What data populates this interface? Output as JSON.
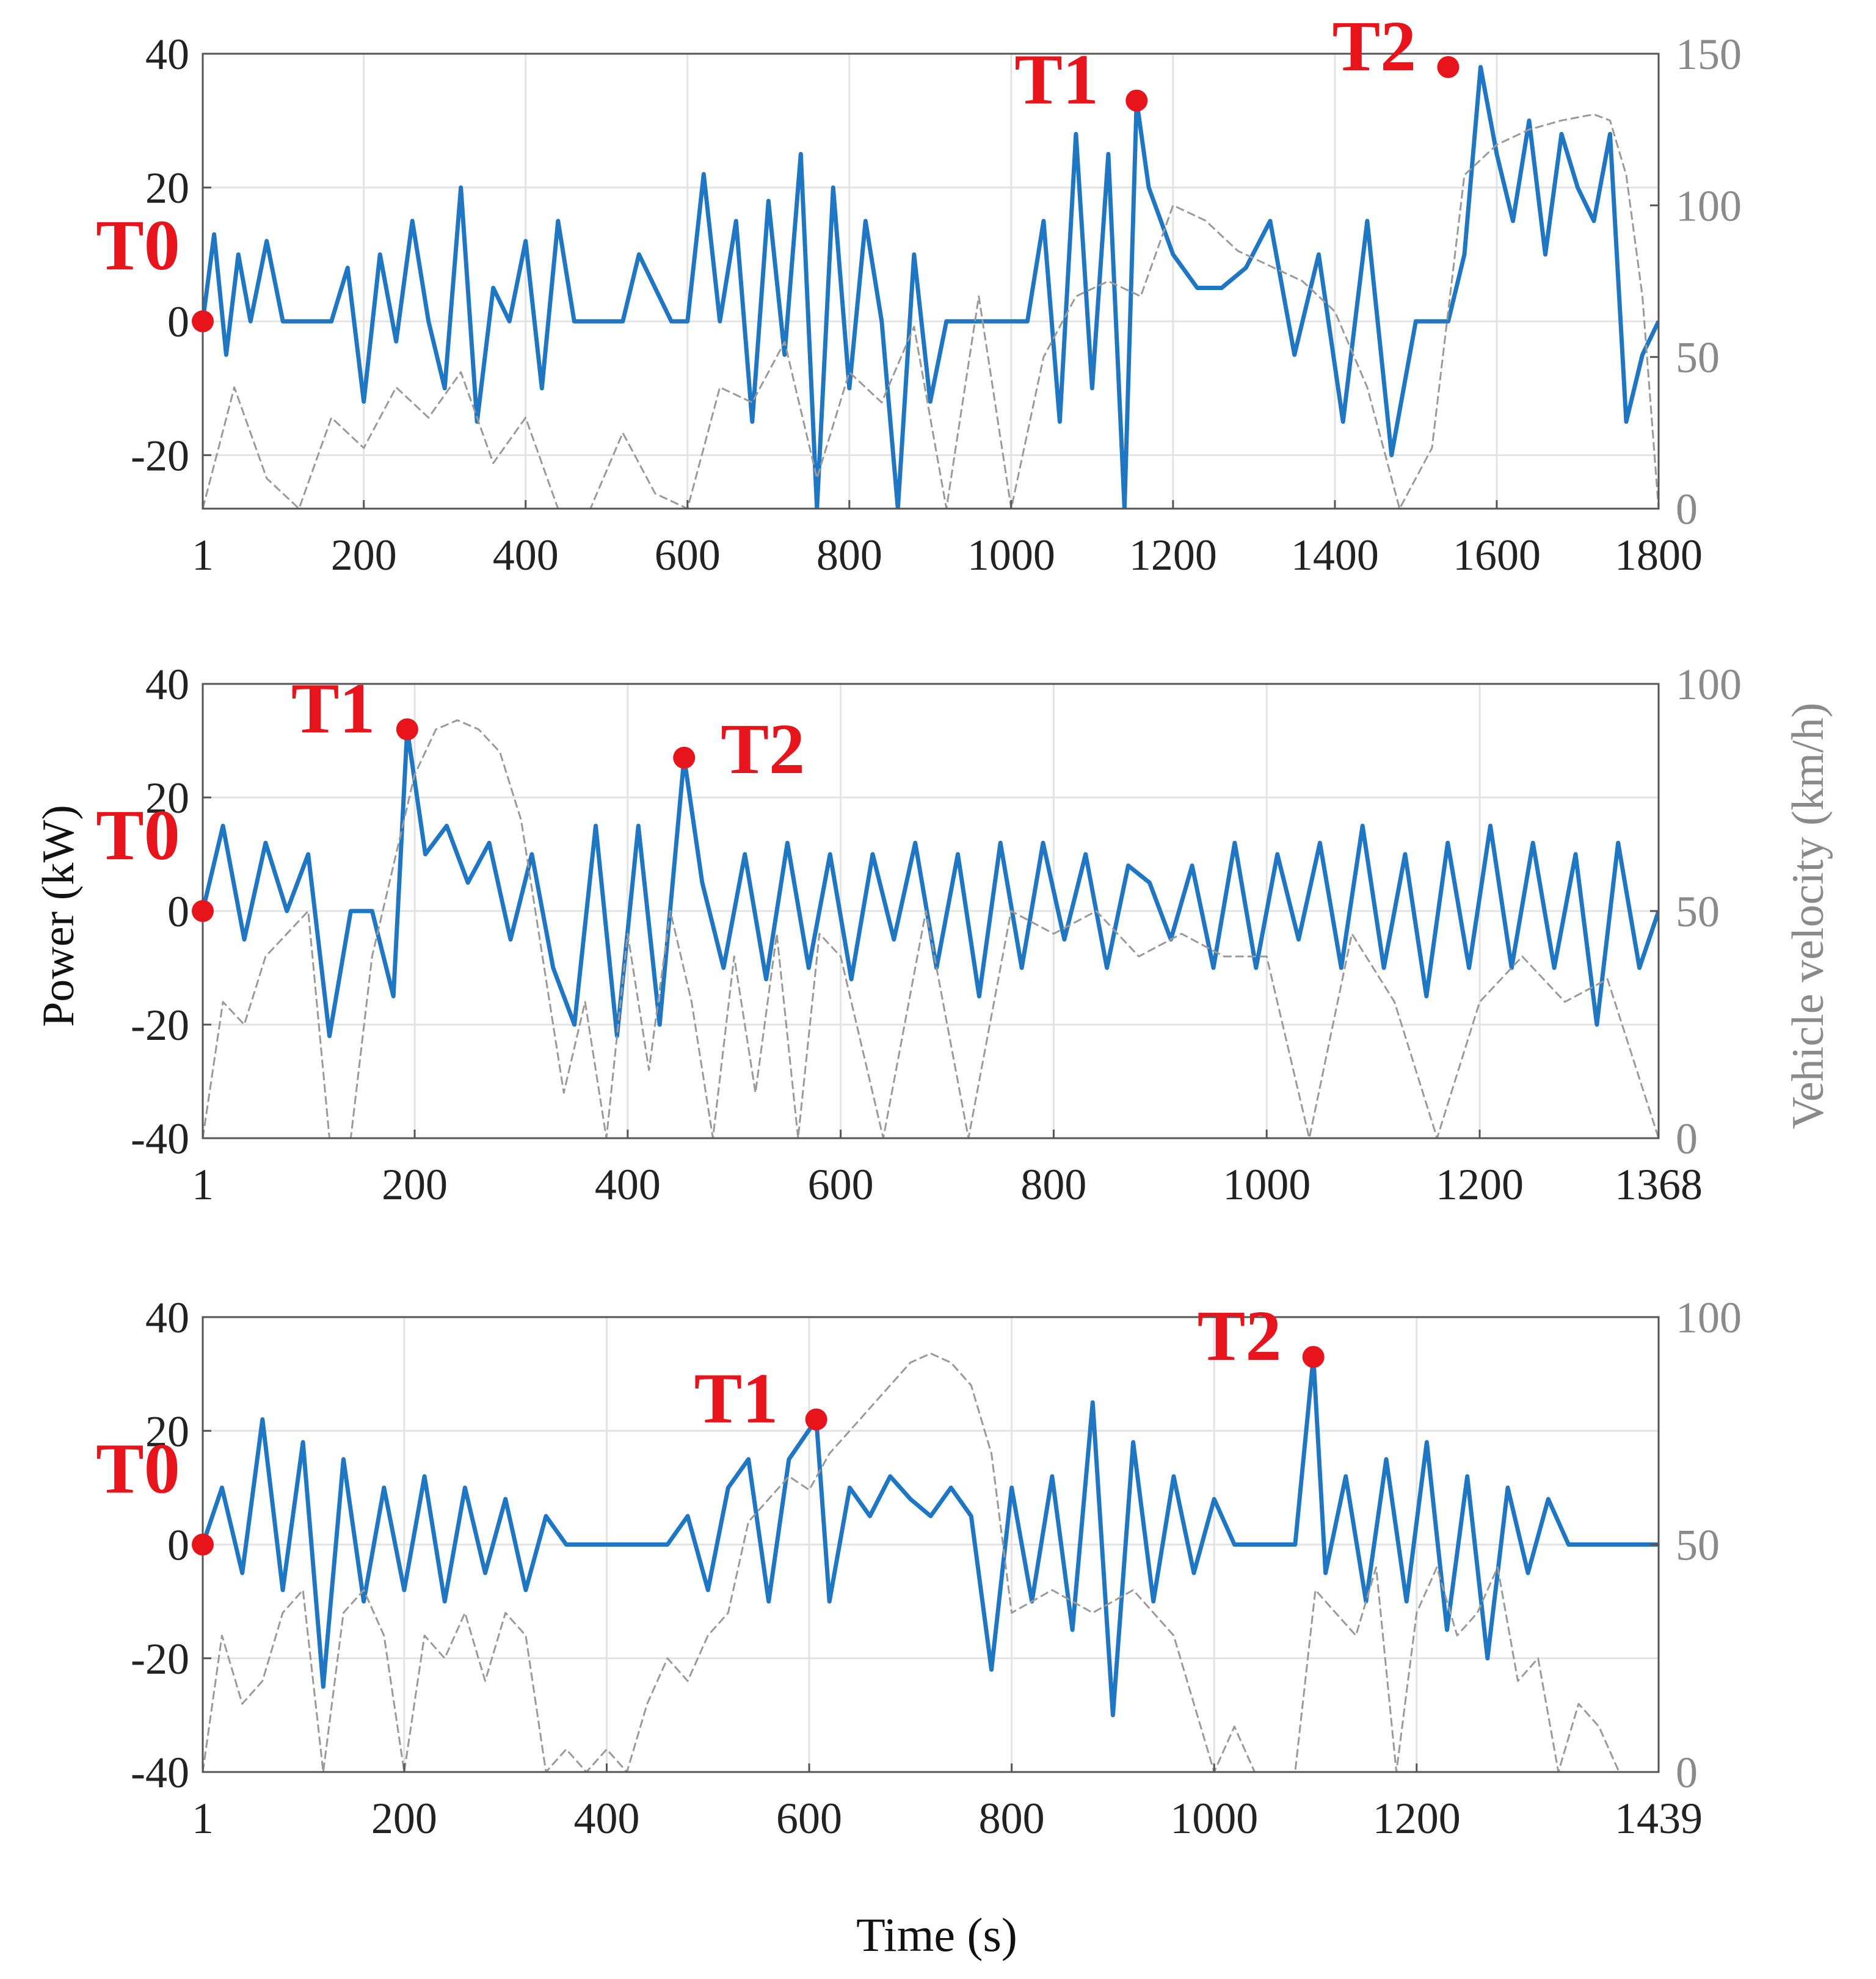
{
  "figure": {
    "y_axis_title_left": "Power (kW)",
    "y_axis_title_right": "Vehicle velocity (km/h)",
    "x_axis_title": "Time (s)"
  },
  "colors": {
    "power": "#1f77c4",
    "velocity": "#9a9a9a",
    "marker": "#e8141b",
    "grid": "#e3e3e3",
    "frame": "#555555"
  },
  "chart_data": [
    {
      "type": "line",
      "title": "",
      "xlabel": "",
      "ylabel": "",
      "y2label": "",
      "xlim": [
        1,
        1800
      ],
      "ylim": [
        -28,
        40
      ],
      "y2lim": [
        0,
        150
      ],
      "x_ticks": [
        1,
        200,
        400,
        600,
        800,
        1000,
        1200,
        1400,
        1600,
        1800
      ],
      "y_ticks": [
        40,
        20,
        0,
        -20
      ],
      "y2_ticks": [
        150,
        100,
        50,
        0
      ],
      "markers": [
        {
          "label": "T0",
          "x": 1,
          "y": 0
        },
        {
          "label": "T1",
          "x": 1155,
          "y": 33
        },
        {
          "label": "T2",
          "x": 1540,
          "y": 38
        }
      ],
      "series": [
        {
          "name": "Power",
          "axis": "left",
          "x": [
            1,
            15,
            30,
            45,
            60,
            80,
            100,
            120,
            140,
            160,
            180,
            200,
            220,
            240,
            260,
            280,
            300,
            320,
            340,
            360,
            380,
            400,
            420,
            440,
            460,
            480,
            500,
            520,
            540,
            560,
            580,
            600,
            620,
            640,
            660,
            680,
            700,
            720,
            740,
            760,
            780,
            800,
            820,
            840,
            860,
            880,
            900,
            920,
            940,
            960,
            980,
            1000,
            1020,
            1040,
            1060,
            1080,
            1100,
            1120,
            1140,
            1155,
            1170,
            1200,
            1230,
            1260,
            1290,
            1320,
            1350,
            1380,
            1410,
            1440,
            1470,
            1500,
            1520,
            1540,
            1560,
            1580,
            1600,
            1620,
            1640,
            1660,
            1680,
            1700,
            1720,
            1740,
            1760,
            1780,
            1800
          ],
          "y": [
            0,
            13,
            -5,
            10,
            0,
            12,
            0,
            0,
            0,
            0,
            8,
            -12,
            10,
            -3,
            15,
            0,
            -10,
            20,
            -15,
            5,
            0,
            12,
            -10,
            15,
            0,
            0,
            0,
            0,
            10,
            5,
            0,
            0,
            22,
            0,
            15,
            -15,
            18,
            -5,
            25,
            -28,
            20,
            -10,
            15,
            0,
            -28,
            10,
            -12,
            0,
            0,
            0,
            0,
            0,
            0,
            15,
            -15,
            28,
            -10,
            25,
            -28,
            33,
            20,
            10,
            5,
            5,
            8,
            15,
            -5,
            10,
            -15,
            15,
            -20,
            0,
            0,
            0,
            10,
            38,
            25,
            15,
            30,
            10,
            28,
            20,
            15,
            28,
            -15,
            -5,
            0
          ]
        },
        {
          "name": "Velocity",
          "axis": "right",
          "x": [
            1,
            40,
            80,
            120,
            160,
            200,
            240,
            280,
            320,
            360,
            400,
            440,
            480,
            520,
            560,
            600,
            640,
            680,
            720,
            760,
            800,
            840,
            880,
            920,
            960,
            1000,
            1040,
            1080,
            1120,
            1160,
            1200,
            1240,
            1280,
            1320,
            1360,
            1400,
            1440,
            1480,
            1520,
            1560,
            1600,
            1640,
            1680,
            1720,
            1740,
            1760,
            1780,
            1800
          ],
          "y": [
            0,
            40,
            10,
            0,
            30,
            20,
            40,
            30,
            45,
            15,
            30,
            0,
            0,
            25,
            5,
            0,
            40,
            35,
            55,
            10,
            45,
            35,
            60,
            0,
            70,
            0,
            50,
            70,
            75,
            70,
            100,
            95,
            85,
            80,
            75,
            65,
            40,
            0,
            20,
            110,
            120,
            125,
            128,
            130,
            128,
            110,
            70,
            0
          ]
        }
      ]
    },
    {
      "type": "line",
      "title": "",
      "xlabel": "",
      "ylabel": "Power (kW)",
      "y2label": "Vehicle velocity (km/h)",
      "xlim": [
        1,
        1368
      ],
      "ylim": [
        -40,
        40
      ],
      "y2lim": [
        0,
        100
      ],
      "x_ticks": [
        1,
        200,
        400,
        600,
        800,
        1000,
        1200,
        1368
      ],
      "y_ticks": [
        40,
        20,
        0,
        -20,
        -40
      ],
      "y2_ticks": [
        100,
        50,
        0
      ],
      "markers": [
        {
          "label": "T0",
          "x": 1,
          "y": 0
        },
        {
          "label": "T1",
          "x": 193,
          "y": 32
        },
        {
          "label": "T2",
          "x": 453,
          "y": 27
        }
      ],
      "series": [
        {
          "name": "Power",
          "axis": "left",
          "x": [
            1,
            20,
            40,
            60,
            80,
            100,
            120,
            140,
            160,
            180,
            193,
            210,
            230,
            250,
            270,
            290,
            310,
            330,
            350,
            370,
            390,
            410,
            430,
            453,
            470,
            490,
            510,
            530,
            550,
            570,
            590,
            610,
            630,
            650,
            670,
            690,
            710,
            730,
            750,
            770,
            790,
            810,
            830,
            850,
            870,
            890,
            910,
            930,
            950,
            970,
            990,
            1010,
            1030,
            1050,
            1070,
            1090,
            1110,
            1130,
            1150,
            1170,
            1190,
            1210,
            1230,
            1250,
            1270,
            1290,
            1310,
            1330,
            1350,
            1368
          ],
          "y": [
            0,
            15,
            -5,
            12,
            0,
            10,
            -22,
            0,
            0,
            -15,
            32,
            10,
            15,
            5,
            12,
            -5,
            10,
            -10,
            -20,
            15,
            -22,
            15,
            -20,
            27,
            5,
            -10,
            10,
            -12,
            12,
            -10,
            10,
            -12,
            10,
            -5,
            12,
            -10,
            10,
            -15,
            12,
            -10,
            12,
            -5,
            10,
            -10,
            8,
            5,
            -5,
            8,
            -10,
            12,
            -10,
            10,
            -5,
            12,
            -10,
            15,
            -10,
            10,
            -15,
            12,
            -10,
            15,
            -10,
            12,
            -10,
            10,
            -20,
            12,
            -10,
            0
          ]
        },
        {
          "name": "Velocity",
          "axis": "right",
          "x": [
            1,
            20,
            40,
            60,
            80,
            100,
            120,
            140,
            160,
            180,
            200,
            220,
            240,
            260,
            280,
            300,
            320,
            340,
            360,
            380,
            400,
            420,
            440,
            460,
            480,
            500,
            520,
            540,
            560,
            580,
            600,
            640,
            680,
            720,
            760,
            800,
            840,
            880,
            920,
            960,
            1000,
            1040,
            1080,
            1120,
            1160,
            1200,
            1240,
            1280,
            1320,
            1368
          ],
          "y": [
            0,
            30,
            25,
            40,
            45,
            50,
            0,
            0,
            40,
            60,
            80,
            90,
            92,
            90,
            85,
            70,
            40,
            10,
            30,
            0,
            45,
            15,
            50,
            30,
            0,
            40,
            10,
            45,
            0,
            45,
            40,
            0,
            50,
            0,
            50,
            45,
            50,
            40,
            45,
            40,
            40,
            0,
            45,
            30,
            0,
            30,
            40,
            30,
            35,
            0
          ]
        }
      ]
    },
    {
      "type": "line",
      "title": "",
      "xlabel": "Time (s)",
      "ylabel": "",
      "y2label": "",
      "xlim": [
        1,
        1439
      ],
      "ylim": [
        -40,
        40
      ],
      "y2lim": [
        0,
        100
      ],
      "x_ticks": [
        1,
        200,
        400,
        600,
        800,
        1000,
        1200,
        1439
      ],
      "y_ticks": [
        40,
        20,
        0,
        -20,
        -40
      ],
      "y2_ticks": [
        100,
        50,
        0
      ],
      "markers": [
        {
          "label": "T0",
          "x": 1,
          "y": 0
        },
        {
          "label": "T1",
          "x": 607,
          "y": 22
        },
        {
          "label": "T2",
          "x": 1098,
          "y": 33
        }
      ],
      "series": [
        {
          "name": "Power",
          "axis": "left",
          "x": [
            1,
            20,
            40,
            60,
            80,
            100,
            120,
            140,
            160,
            180,
            200,
            220,
            240,
            260,
            280,
            300,
            320,
            340,
            360,
            380,
            400,
            420,
            440,
            460,
            480,
            500,
            520,
            540,
            560,
            580,
            607,
            620,
            640,
            660,
            680,
            700,
            720,
            740,
            760,
            780,
            800,
            820,
            840,
            860,
            880,
            900,
            920,
            940,
            960,
            980,
            1000,
            1020,
            1040,
            1060,
            1080,
            1098,
            1110,
            1130,
            1150,
            1170,
            1190,
            1210,
            1230,
            1250,
            1270,
            1290,
            1310,
            1330,
            1350,
            1370,
            1390,
            1410,
            1439
          ],
          "y": [
            0,
            10,
            -5,
            22,
            -8,
            18,
            -25,
            15,
            -10,
            10,
            -8,
            12,
            -10,
            10,
            -5,
            8,
            -8,
            5,
            0,
            0,
            0,
            0,
            0,
            0,
            5,
            -8,
            10,
            15,
            -10,
            15,
            22,
            -10,
            10,
            5,
            12,
            8,
            5,
            10,
            5,
            -22,
            10,
            -10,
            12,
            -15,
            25,
            -30,
            18,
            -10,
            12,
            -5,
            8,
            0,
            0,
            0,
            0,
            33,
            -5,
            12,
            -10,
            15,
            -10,
            18,
            -15,
            12,
            -20,
            10,
            -5,
            8,
            0,
            0,
            0,
            0,
            0
          ]
        },
        {
          "name": "Velocity",
          "axis": "right",
          "x": [
            1,
            20,
            40,
            60,
            80,
            100,
            120,
            140,
            160,
            180,
            200,
            220,
            240,
            260,
            280,
            300,
            320,
            340,
            360,
            380,
            400,
            420,
            440,
            460,
            480,
            500,
            520,
            540,
            560,
            580,
            600,
            620,
            640,
            660,
            680,
            700,
            720,
            740,
            760,
            780,
            800,
            840,
            880,
            920,
            960,
            1000,
            1020,
            1040,
            1060,
            1080,
            1100,
            1120,
            1140,
            1160,
            1180,
            1200,
            1220,
            1240,
            1260,
            1280,
            1300,
            1320,
            1340,
            1360,
            1380,
            1400,
            1439
          ],
          "y": [
            0,
            30,
            15,
            20,
            35,
            40,
            0,
            35,
            40,
            30,
            0,
            30,
            25,
            35,
            20,
            35,
            30,
            0,
            5,
            0,
            5,
            0,
            15,
            25,
            20,
            30,
            35,
            55,
            60,
            65,
            62,
            70,
            75,
            80,
            85,
            90,
            92,
            90,
            85,
            70,
            35,
            40,
            35,
            40,
            30,
            0,
            10,
            0,
            0,
            0,
            40,
            35,
            30,
            45,
            0,
            35,
            45,
            30,
            35,
            45,
            20,
            25,
            0,
            15,
            10,
            0,
            0
          ]
        }
      ]
    }
  ]
}
